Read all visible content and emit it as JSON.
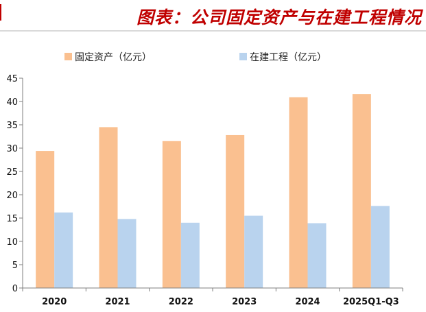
{
  "chart_data": {
    "type": "bar",
    "title": "图表：公司固定资产与在建工程情况",
    "categories": [
      "2020",
      "2021",
      "2022",
      "2023",
      "2024",
      "2025Q1-Q3"
    ],
    "series": [
      {
        "name": "固定资产（亿元）",
        "color": "#fac090",
        "values": [
          29.4,
          34.5,
          31.5,
          32.8,
          40.9,
          41.6
        ]
      },
      {
        "name": "在建工程（亿元）",
        "color": "#b9d3ee",
        "values": [
          16.2,
          14.8,
          14.0,
          15.5,
          13.9,
          17.6
        ]
      }
    ],
    "yticks": [
      0,
      5,
      10,
      15,
      20,
      25,
      30,
      35,
      40,
      45
    ],
    "ytick_labels": [
      "0",
      "5",
      "10",
      "15",
      "20",
      "25",
      "30",
      "35",
      "40",
      "45"
    ],
    "ylim": [
      0,
      45
    ],
    "xlabel": "",
    "ylabel": "",
    "legend": "top",
    "grid": false
  }
}
